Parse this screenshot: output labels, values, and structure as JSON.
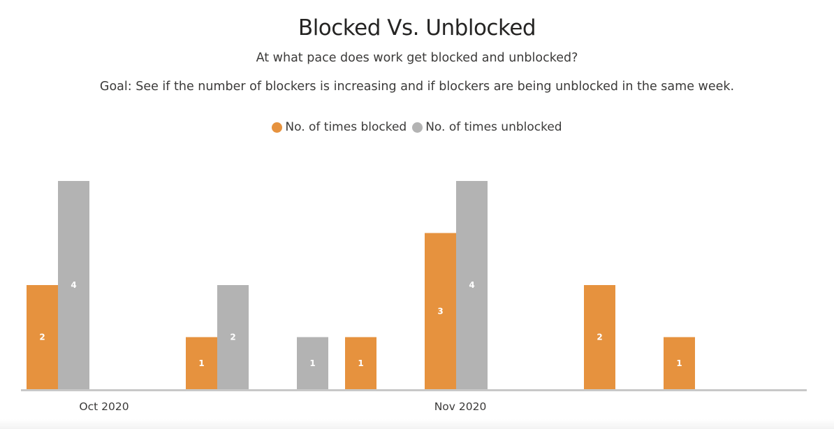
{
  "header": {
    "title": "Blocked Vs. Unblocked",
    "subtitle_1": "At what pace does work get blocked and unblocked?",
    "subtitle_2": "Goal: See if the number of blockers is increasing and if blockers are being unblocked in the same week."
  },
  "legend": {
    "blocked_label": "No. of times blocked",
    "unblocked_label": "No. of times unblocked"
  },
  "colors": {
    "blocked": "#E6923E",
    "unblocked": "#B3B3B3",
    "axis": "#C8C8C8"
  },
  "chart_data": {
    "type": "bar",
    "title": "Blocked Vs. Unblocked",
    "xlabel": "",
    "ylabel": "",
    "ylim": [
      0,
      4
    ],
    "grid": false,
    "legend_position": "top-center",
    "x_tick_labels": [
      {
        "label": "Oct 2020",
        "at_category": 0
      },
      {
        "label": "Nov 2020",
        "at_category": 5
      }
    ],
    "categories": [
      "",
      "",
      "",
      "",
      "",
      "",
      "",
      "",
      ""
    ],
    "series": [
      {
        "name": "No. of times blocked",
        "values": [
          2,
          null,
          1,
          null,
          1,
          3,
          null,
          2,
          1
        ],
        "labels": [
          "2",
          "",
          "1",
          "",
          "1",
          "3",
          "",
          "2",
          "1"
        ]
      },
      {
        "name": "No. of times unblocked",
        "values": [
          4,
          null,
          2,
          1,
          null,
          4,
          null,
          null,
          null
        ],
        "labels": [
          "4",
          "",
          "2",
          "1",
          "",
          "4",
          "",
          "",
          ""
        ]
      }
    ]
  }
}
